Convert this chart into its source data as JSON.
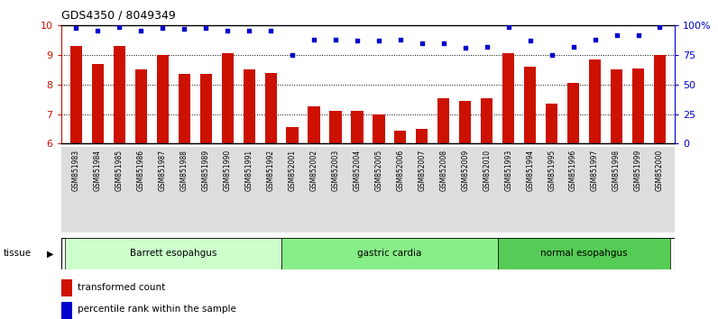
{
  "title": "GDS4350 / 8049349",
  "samples": [
    "GSM851983",
    "GSM851984",
    "GSM851985",
    "GSM851986",
    "GSM851987",
    "GSM851988",
    "GSM851989",
    "GSM851990",
    "GSM851991",
    "GSM851992",
    "GSM852001",
    "GSM852002",
    "GSM852003",
    "GSM852004",
    "GSM852005",
    "GSM852006",
    "GSM852007",
    "GSM852008",
    "GSM852009",
    "GSM852010",
    "GSM851993",
    "GSM851994",
    "GSM851995",
    "GSM851996",
    "GSM851997",
    "GSM851998",
    "GSM851999",
    "GSM852000"
  ],
  "bar_values": [
    9.3,
    8.7,
    9.3,
    8.5,
    9.0,
    8.35,
    8.35,
    9.05,
    8.5,
    8.4,
    6.55,
    7.25,
    7.1,
    7.1,
    7.0,
    6.45,
    6.5,
    7.55,
    7.45,
    7.55,
    9.05,
    8.6,
    7.35,
    8.05,
    8.85,
    8.5,
    8.55,
    9.0
  ],
  "dot_values": [
    98,
    96,
    99,
    96,
    98,
    97,
    98,
    96,
    96,
    96,
    75,
    88,
    88,
    87,
    87,
    88,
    85,
    85,
    81,
    82,
    99,
    87,
    75,
    82,
    88,
    92,
    92,
    99
  ],
  "groups": [
    {
      "label": "Barrett esopahgus",
      "start": 0,
      "end": 10,
      "color": "#ccffcc"
    },
    {
      "label": "gastric cardia",
      "start": 10,
      "end": 20,
      "color": "#88ee88"
    },
    {
      "label": "normal esopahgus",
      "start": 20,
      "end": 28,
      "color": "#55cc55"
    }
  ],
  "bar_color": "#cc1100",
  "dot_color": "#0000cc",
  "ylim_left": [
    6,
    10
  ],
  "ylim_right": [
    0,
    100
  ],
  "yticks_left": [
    6,
    7,
    8,
    9,
    10
  ],
  "yticks_right": [
    0,
    25,
    50,
    75,
    100
  ],
  "ytick_labels_right": [
    "0",
    "25",
    "50",
    "75",
    "100%"
  ],
  "legend_items": [
    {
      "label": "transformed count",
      "color": "#cc1100"
    },
    {
      "label": "percentile rank within the sample",
      "color": "#0000cc"
    }
  ],
  "background_color": "#ffffff",
  "xtick_band_color": "#dddddd"
}
